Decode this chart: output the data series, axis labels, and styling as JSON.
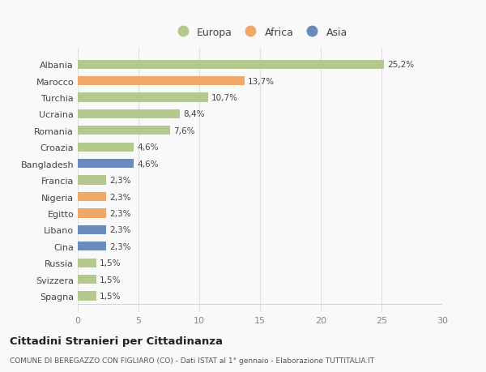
{
  "categories": [
    "Albania",
    "Marocco",
    "Turchia",
    "Ucraina",
    "Romania",
    "Croazia",
    "Bangladesh",
    "Francia",
    "Nigeria",
    "Egitto",
    "Libano",
    "Cina",
    "Russia",
    "Svizzera",
    "Spagna"
  ],
  "values": [
    25.2,
    13.7,
    10.7,
    8.4,
    7.6,
    4.6,
    4.6,
    2.3,
    2.3,
    2.3,
    2.3,
    2.3,
    1.5,
    1.5,
    1.5
  ],
  "labels": [
    "25,2%",
    "13,7%",
    "10,7%",
    "8,4%",
    "7,6%",
    "4,6%",
    "4,6%",
    "2,3%",
    "2,3%",
    "2,3%",
    "2,3%",
    "2,3%",
    "1,5%",
    "1,5%",
    "1,5%"
  ],
  "continent": [
    "Europa",
    "Africa",
    "Europa",
    "Europa",
    "Europa",
    "Europa",
    "Asia",
    "Europa",
    "Africa",
    "Africa",
    "Asia",
    "Asia",
    "Europa",
    "Europa",
    "Europa"
  ],
  "colors": {
    "Europa": "#b5c98e",
    "Africa": "#f0a868",
    "Asia": "#6b8cba"
  },
  "legend_labels": [
    "Europa",
    "Africa",
    "Asia"
  ],
  "xlim": [
    0,
    30
  ],
  "xticks": [
    0,
    5,
    10,
    15,
    20,
    25,
    30
  ],
  "title": "Cittadini Stranieri per Cittadinanza",
  "subtitle": "COMUNE DI BEREGAZZO CON FIGLIARO (CO) - Dati ISTAT al 1° gennaio - Elaborazione TUTTITALIA.IT",
  "background_color": "#f9f9f9",
  "grid_color": "#e0e0e0",
  "bar_height": 0.55
}
